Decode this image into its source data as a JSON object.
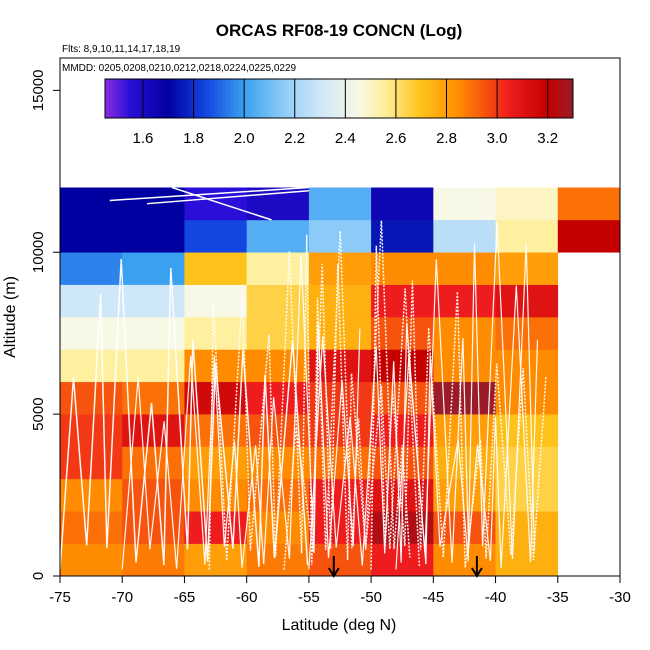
{
  "chart_data": {
    "type": "heatmap",
    "title": "ORCAS RF08-19 CONCN (Log)",
    "flights_label": "Flts: 8,9,10,11,14,17,18,19",
    "dates_label": "MMDD: 0205,0208,0210,0212,0218,0224,0225,0229",
    "xlabel": "Latitude (deg N)",
    "ylabel": "Altitude (m)",
    "xlim": [
      -75,
      -30
    ],
    "ylim": [
      0,
      16000
    ],
    "x_ticks": [
      -75,
      -70,
      -65,
      -60,
      -55,
      -50,
      -45,
      -40,
      -35,
      -30
    ],
    "y_ticks": [
      0,
      5000,
      10000,
      15000
    ],
    "x_tick_labels": [
      "-75",
      "-70",
      "-65",
      "-60",
      "-55",
      "-50",
      "-45",
      "-40",
      "-35",
      "-30"
    ],
    "y_tick_labels": [
      "0",
      "5000",
      "10000",
      "15000"
    ],
    "lat_bin_edges": [
      -75,
      -70,
      -65,
      -60,
      -55,
      -50,
      -45,
      -40,
      -35,
      -30
    ],
    "alt_bin_edges": [
      0,
      1000,
      2000,
      3000,
      4000,
      5000,
      6000,
      7000,
      8000,
      9000,
      10000,
      11000,
      12000
    ],
    "cell_values": [
      [
        2.85,
        2.88,
        2.8,
        2.88,
        2.95,
        3.05,
        2.85,
        2.75,
        null
      ],
      [
        2.9,
        2.95,
        3.05,
        2.85,
        3.05,
        3.25,
        2.95,
        2.75,
        null
      ],
      [
        2.85,
        2.95,
        2.85,
        2.9,
        3.05,
        3.1,
        2.8,
        2.65,
        null
      ],
      [
        3.0,
        2.9,
        2.8,
        2.85,
        2.9,
        2.95,
        2.75,
        2.65,
        null
      ],
      [
        3.0,
        3.1,
        2.9,
        2.95,
        3.0,
        3.05,
        2.8,
        2.7,
        null
      ],
      [
        2.95,
        2.9,
        3.15,
        3.05,
        3.0,
        2.95,
        3.3,
        2.85,
        null
      ],
      [
        2.55,
        2.55,
        2.85,
        2.85,
        3.1,
        3.2,
        2.85,
        2.85,
        null
      ],
      [
        2.45,
        2.45,
        2.55,
        2.65,
        2.75,
        2.95,
        2.85,
        2.9,
        null
      ],
      [
        2.3,
        2.3,
        2.45,
        2.65,
        2.75,
        3.05,
        3.05,
        3.1,
        null
      ],
      [
        1.95,
        2.0,
        2.7,
        2.55,
        2.8,
        2.85,
        2.85,
        2.8,
        null
      ],
      [
        1.7,
        1.7,
        1.85,
        2.05,
        2.15,
        1.75,
        2.25,
        2.55,
        3.2
      ],
      [
        1.7,
        1.7,
        1.55,
        1.6,
        2.05,
        1.65,
        2.45,
        2.5,
        2.9
      ]
    ],
    "colorbar": {
      "range": [
        1.45,
        3.3
      ],
      "ticks": [
        1.6,
        1.8,
        2.0,
        2.2,
        2.4,
        2.6,
        2.8,
        3.0,
        3.2
      ],
      "tick_labels": [
        "1.6",
        "1.8",
        "2.0",
        "2.2",
        "2.4",
        "2.6",
        "2.8",
        "3.0",
        "3.2"
      ],
      "stops": [
        {
          "v": 1.45,
          "c": "#8a2be2"
        },
        {
          "v": 1.55,
          "c": "#2a0fd8"
        },
        {
          "v": 1.7,
          "c": "#0000a0"
        },
        {
          "v": 1.85,
          "c": "#1446e0"
        },
        {
          "v": 2.0,
          "c": "#3aa0f0"
        },
        {
          "v": 2.15,
          "c": "#8ccaf8"
        },
        {
          "v": 2.3,
          "c": "#cfe8f8"
        },
        {
          "v": 2.45,
          "c": "#f8f8e6"
        },
        {
          "v": 2.55,
          "c": "#fff0a0"
        },
        {
          "v": 2.7,
          "c": "#ffc21a"
        },
        {
          "v": 2.85,
          "c": "#ff8c00"
        },
        {
          "v": 3.05,
          "c": "#ee1c1c"
        },
        {
          "v": 3.2,
          "c": "#c40000"
        },
        {
          "v": 3.3,
          "c": "#9b1c28"
        }
      ]
    },
    "flight_track_color": "#ffffff",
    "arrow_markers_lat": [
      -53,
      -41.5
    ]
  }
}
